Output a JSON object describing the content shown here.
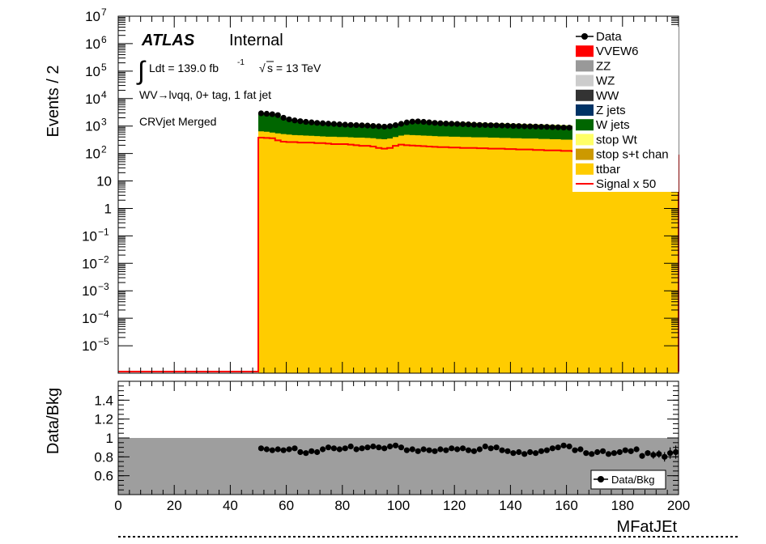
{
  "chart_data": [
    {
      "type": "area",
      "ylabel": "Events / 2",
      "yscale": "log",
      "ylim": [
        1e-06,
        10000000.0
      ],
      "xlim": [
        0,
        200
      ],
      "y_ticks": [
        {
          "value": 10000000.0,
          "base": "10",
          "exp": "7"
        },
        {
          "value": 1000000.0,
          "base": "10",
          "exp": "6"
        },
        {
          "value": 100000.0,
          "base": "10",
          "exp": "5"
        },
        {
          "value": 10000.0,
          "base": "10",
          "exp": "4"
        },
        {
          "value": 1000.0,
          "base": "10",
          "exp": "3"
        },
        {
          "value": 100.0,
          "base": "10",
          "exp": "2"
        },
        {
          "value": 10,
          "base": "10",
          "exp": ""
        },
        {
          "value": 1,
          "base": "1",
          "exp": ""
        },
        {
          "value": 0.1,
          "base": "10",
          "exp": "−1"
        },
        {
          "value": 0.01,
          "base": "10",
          "exp": "−2"
        },
        {
          "value": 0.001,
          "base": "10",
          "exp": "−3"
        },
        {
          "value": 0.0001,
          "base": "10",
          "exp": "−4"
        },
        {
          "value": 1e-05,
          "base": "10",
          "exp": "−5"
        }
      ],
      "labels": {
        "atlas": "ATLAS",
        "internal": "Internal",
        "lumi_prefix": "Ldt = 139.0 fb",
        "lumi_exp": "-1",
        "energy": "s = 13 TeV",
        "channel": "WV→lνqq, 0+ tag, 1 fat jet",
        "region": "CRVjet Merged"
      },
      "legend_position": "top-right",
      "legend": [
        {
          "label": "Data",
          "style": "marker",
          "color": "#000000"
        },
        {
          "label": "VVEW6",
          "style": "fill",
          "color": "#ff0000"
        },
        {
          "label": "ZZ",
          "style": "fill",
          "color": "#999999"
        },
        {
          "label": "WZ",
          "style": "fill",
          "color": "#cccccc"
        },
        {
          "label": "WW",
          "style": "fill",
          "color": "#333333"
        },
        {
          "label": "Z jets",
          "style": "fill",
          "color": "#003366"
        },
        {
          "label": "W jets",
          "style": "fill",
          "color": "#006600"
        },
        {
          "label": "stop Wt",
          "style": "fill",
          "color": "#ffff66"
        },
        {
          "label": "stop s+t chan",
          "style": "fill",
          "color": "#cc9900"
        },
        {
          "label": "ttbar",
          "style": "fill",
          "color": "#ffcc00"
        },
        {
          "label": "Signal x 50",
          "style": "line",
          "color": "#ff0000"
        }
      ],
      "bin_edges_start": 50,
      "bin_width": 2,
      "series": [
        {
          "name": "ttbar",
          "color": "#ffcc00",
          "values": [
            640,
            620,
            580,
            540,
            510,
            490,
            470,
            460,
            450,
            440,
            430,
            420,
            410,
            410,
            400,
            400,
            390,
            380,
            380,
            370,
            360,
            340,
            330,
            350,
            400,
            450,
            480,
            470,
            460,
            450,
            440,
            430,
            420,
            420,
            410,
            410,
            400,
            400,
            390,
            390,
            390,
            380,
            380,
            370,
            370,
            360,
            360,
            350,
            350,
            350,
            340,
            340,
            330,
            330,
            320,
            320,
            310,
            310,
            300,
            300,
            290,
            290,
            280,
            280,
            270,
            270,
            260,
            260,
            250,
            250,
            240,
            240,
            230,
            230,
            220
          ]
        },
        {
          "name": "W jets",
          "color": "#006600",
          "values": [
            2400,
            2300,
            2150,
            1900,
            1450,
            1250,
            1150,
            1080,
            1020,
            980,
            930,
            900,
            870,
            850,
            820,
            800,
            790,
            780,
            770,
            760,
            740,
            720,
            700,
            720,
            780,
            850,
            950,
            1100,
            1150,
            1100,
            1050,
            1000,
            970,
            950,
            940,
            930,
            920,
            900,
            880,
            870,
            860,
            850,
            840,
            830,
            820,
            810,
            800,
            790,
            780,
            770,
            760,
            750,
            740,
            730,
            720,
            710,
            700,
            690,
            680,
            670,
            660,
            650,
            640,
            630,
            620,
            610,
            600,
            590,
            580,
            570,
            560,
            550,
            540,
            530,
            520
          ]
        },
        {
          "name": "stop Wt",
          "color": "#ffff66",
          "values": [
            90,
            88,
            85,
            80,
            75,
            72,
            70,
            68,
            66,
            65,
            64,
            63,
            62,
            61,
            60,
            60,
            59,
            58,
            58,
            57,
            56,
            55,
            54,
            55,
            58,
            62,
            65,
            66,
            65,
            64,
            63,
            62,
            61,
            60,
            60,
            59,
            59,
            58,
            58,
            57,
            57,
            56,
            56,
            55,
            55,
            54,
            54,
            53,
            53,
            52,
            52,
            51,
            51,
            50,
            50,
            49,
            49,
            48,
            48,
            47,
            47,
            46,
            46,
            45,
            45,
            44,
            44,
            43,
            43,
            42,
            42,
            41,
            41,
            40,
            40
          ]
        }
      ],
      "data_points": [
        2900,
        2800,
        2700,
        2500,
        2000,
        1750,
        1600,
        1500,
        1420,
        1360,
        1300,
        1260,
        1220,
        1190,
        1150,
        1120,
        1100,
        1080,
        1060,
        1040,
        1010,
        980,
        950,
        990,
        1080,
        1200,
        1350,
        1450,
        1480,
        1420,
        1360,
        1300,
        1260,
        1230,
        1210,
        1190,
        1170,
        1150,
        1120,
        1100,
        1090,
        1070,
        1060,
        1040,
        1030,
        1010,
        1000,
        980,
        970,
        960,
        940,
        930,
        910,
        900,
        880,
        870,
        860,
        840,
        830,
        810,
        800,
        780,
        770,
        760,
        740,
        730,
        720,
        700,
        690,
        680,
        660,
        650,
        640,
        620,
        600
      ],
      "signal_x50": [
        380,
        370,
        360,
        300,
        270,
        260,
        260,
        250,
        250,
        250,
        240,
        240,
        230,
        220,
        220,
        220,
        210,
        200,
        190,
        190,
        180,
        160,
        150,
        160,
        190,
        210,
        200,
        195,
        190,
        185,
        180,
        175,
        170,
        170,
        165,
        165,
        160,
        160,
        160,
        155,
        155,
        150,
        150,
        150,
        145,
        145,
        140,
        140,
        140,
        135,
        135,
        130,
        130,
        130,
        125,
        125,
        120,
        120,
        120,
        115,
        115,
        110,
        110,
        110,
        105,
        105,
        100,
        100,
        100,
        95,
        95,
        90,
        90,
        90,
        85
      ]
    },
    {
      "type": "scatter",
      "xlabel": "MFatJEt",
      "ylabel": "Data/Bkg",
      "xlim": [
        0,
        200
      ],
      "ylim": [
        0.4,
        1.6
      ],
      "x_ticks": [
        "0",
        "20",
        "40",
        "60",
        "80",
        "100",
        "120",
        "140",
        "160",
        "180",
        "200"
      ],
      "y_ticks": [
        "0.6",
        "0.8",
        "1",
        "1.2",
        "1.4"
      ],
      "legend": [
        {
          "label": "Data/Bkg",
          "style": "marker"
        }
      ],
      "legend_position": "bottom-right",
      "band": {
        "lo": 0.4,
        "hi": 1.0,
        "color": "#9e9e9e"
      },
      "ratio_values": [
        0.89,
        0.88,
        0.87,
        0.88,
        0.87,
        0.88,
        0.89,
        0.85,
        0.84,
        0.86,
        0.85,
        0.88,
        0.9,
        0.89,
        0.88,
        0.89,
        0.91,
        0.88,
        0.89,
        0.9,
        0.91,
        0.9,
        0.89,
        0.91,
        0.92,
        0.9,
        0.87,
        0.88,
        0.86,
        0.88,
        0.87,
        0.86,
        0.88,
        0.87,
        0.89,
        0.88,
        0.89,
        0.87,
        0.86,
        0.88,
        0.91,
        0.89,
        0.9,
        0.87,
        0.86,
        0.84,
        0.85,
        0.83,
        0.85,
        0.84,
        0.86,
        0.87,
        0.89,
        0.9,
        0.92,
        0.91,
        0.87,
        0.88,
        0.84,
        0.83,
        0.85,
        0.86,
        0.83,
        0.84,
        0.85,
        0.87,
        0.86,
        0.88,
        0.81,
        0.84,
        0.82,
        0.83,
        0.8,
        0.84,
        0.85
      ],
      "ratio_errors": [
        0.01,
        0.01,
        0.01,
        0.01,
        0.01,
        0.01,
        0.01,
        0.01,
        0.01,
        0.01,
        0.01,
        0.01,
        0.01,
        0.01,
        0.01,
        0.01,
        0.01,
        0.01,
        0.01,
        0.01,
        0.01,
        0.01,
        0.01,
        0.01,
        0.01,
        0.01,
        0.01,
        0.01,
        0.01,
        0.01,
        0.01,
        0.01,
        0.01,
        0.01,
        0.01,
        0.01,
        0.01,
        0.01,
        0.01,
        0.01,
        0.01,
        0.01,
        0.01,
        0.01,
        0.01,
        0.01,
        0.01,
        0.01,
        0.01,
        0.01,
        0.01,
        0.01,
        0.01,
        0.01,
        0.01,
        0.01,
        0.01,
        0.01,
        0.02,
        0.02,
        0.02,
        0.02,
        0.02,
        0.02,
        0.02,
        0.02,
        0.03,
        0.03,
        0.03,
        0.03,
        0.04,
        0.04,
        0.05,
        0.06,
        0.07
      ]
    }
  ]
}
